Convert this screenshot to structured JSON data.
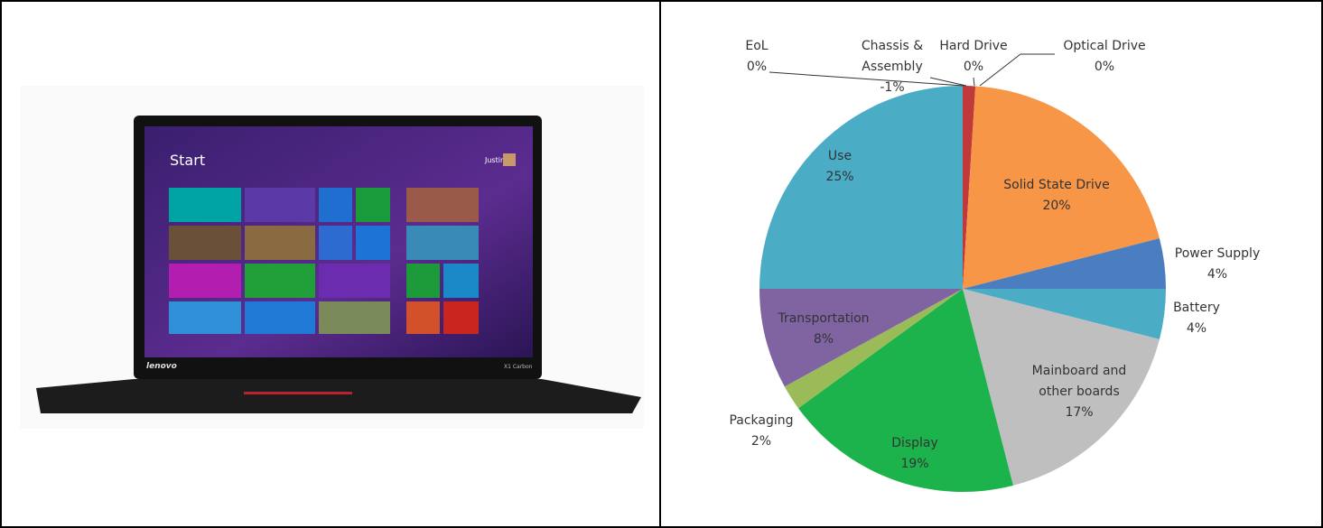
{
  "photo": {
    "screen_title": "Start",
    "user": "Justin",
    "brand": "lenovo",
    "model": "X1 Carbon"
  },
  "chart_data": {
    "type": "pie",
    "categories": [
      "EoL",
      "Chassis & Assembly",
      "Hard Drive",
      "Optical Drive",
      "Solid State Drive",
      "Power Supply",
      "Battery",
      "Mainboard and other boards",
      "Display",
      "Packaging",
      "Transportation",
      "Use"
    ],
    "values": [
      0,
      -1,
      0,
      0,
      20,
      4,
      4,
      17,
      19,
      2,
      8,
      25
    ],
    "value_labels": [
      "0%",
      "-1%",
      "0%",
      "0%",
      "20%",
      "4%",
      "4%",
      "17%",
      "19%",
      "2%",
      "8%",
      "25%"
    ],
    "colors": [
      "#4bacc6",
      "#c0393b",
      "#7f7f7f",
      "#f2f2f2",
      "#f79646",
      "#4a7ec0",
      "#4bacc6",
      "#bfbfbf",
      "#1db34c",
      "#9bbb59",
      "#8064a2",
      "#4bacc6"
    ]
  }
}
